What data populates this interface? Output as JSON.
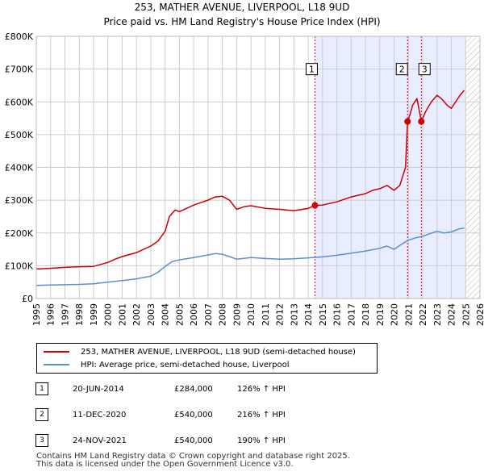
{
  "header": {
    "title_line1": "253, MATHER AVENUE, LIVERPOOL, L18 9UD",
    "title_line2": "Price paid vs. HM Land Registry's House Price Index (HPI)"
  },
  "colors": {
    "property": "#cc0000",
    "hpi": "#5b8fd0",
    "highlight": "#e8eeff",
    "marker_line": "#dd0000",
    "grid": "#cccccc"
  },
  "chart_data": {
    "type": "line",
    "title": "253, MATHER AVENUE, LIVERPOOL, L18 9UD",
    "subtitle": "Price paid vs. HM Land Registry's House Price Index (HPI)",
    "xlim": [
      1995,
      2026
    ],
    "ylim": [
      0,
      800000
    ],
    "y_ticks": [
      0,
      100000,
      200000,
      300000,
      400000,
      500000,
      600000,
      700000,
      800000
    ],
    "y_tick_labels": [
      "£0",
      "£100K",
      "£200K",
      "£300K",
      "£400K",
      "£500K",
      "£600K",
      "£700K",
      "£800K"
    ],
    "x_ticks": [
      1995,
      1996,
      1997,
      1998,
      1999,
      2000,
      2001,
      2002,
      2003,
      2004,
      2005,
      2006,
      2007,
      2008,
      2009,
      2010,
      2011,
      2012,
      2013,
      2014,
      2015,
      2016,
      2017,
      2018,
      2019,
      2020,
      2021,
      2022,
      2023,
      2024,
      2025,
      2026
    ],
    "highlight_band": [
      2014.47,
      2025.0
    ],
    "hatched_after": 2025.0,
    "grid": true,
    "legend_position": "bottom",
    "series": [
      {
        "name": "253, MATHER AVENUE, LIVERPOOL, L18 9UD (semi-detached house)",
        "x": [
          1995.0,
          1996.0,
          1997.0,
          1998.0,
          1999.0,
          2000.0,
          2000.5,
          2001.0,
          2002.0,
          2003.0,
          2003.5,
          2004.0,
          2004.3,
          2004.7,
          2005.0,
          2006.0,
          2007.0,
          2007.5,
          2008.0,
          2008.5,
          2009.0,
          2009.5,
          2010.0,
          2011.0,
          2012.0,
          2013.0,
          2014.0,
          2014.47,
          2015.0,
          2016.0,
          2017.0,
          2018.0,
          2018.5,
          2019.0,
          2019.5,
          2020.0,
          2020.4,
          2020.8,
          2020.94,
          2021.1,
          2021.3,
          2021.6,
          2021.9,
          2022.2,
          2022.6,
          2023.0,
          2023.3,
          2023.7,
          2024.0,
          2024.3,
          2024.6,
          2024.9
        ],
        "y": [
          90000,
          92000,
          95000,
          97000,
          98000,
          110000,
          120000,
          128000,
          140000,
          160000,
          175000,
          205000,
          250000,
          270000,
          265000,
          285000,
          300000,
          310000,
          312000,
          300000,
          272000,
          280000,
          283000,
          275000,
          272000,
          268000,
          275000,
          284000,
          285000,
          295000,
          310000,
          320000,
          330000,
          335000,
          345000,
          330000,
          345000,
          400000,
          540000,
          560000,
          590000,
          610000,
          540000,
          570000,
          600000,
          620000,
          610000,
          590000,
          580000,
          600000,
          620000,
          635000
        ]
      },
      {
        "name": "HPI: Average price, semi-detached house, Liverpool",
        "x": [
          1995.0,
          1996.0,
          1997.0,
          1998.0,
          1999.0,
          2000.0,
          2001.0,
          2002.0,
          2003.0,
          2003.5,
          2004.0,
          2004.5,
          2005.0,
          2006.0,
          2007.0,
          2007.5,
          2008.0,
          2008.5,
          2009.0,
          2010.0,
          2011.0,
          2012.0,
          2013.0,
          2014.0,
          2015.0,
          2016.0,
          2017.0,
          2018.0,
          2019.0,
          2019.5,
          2020.0,
          2020.5,
          2021.0,
          2021.5,
          2022.0,
          2022.5,
          2023.0,
          2023.5,
          2024.0,
          2024.5,
          2024.9
        ],
        "y": [
          40000,
          41000,
          42000,
          43000,
          45000,
          50000,
          55000,
          60000,
          68000,
          80000,
          98000,
          113000,
          118000,
          125000,
          133000,
          137000,
          135000,
          128000,
          120000,
          125000,
          122000,
          120000,
          121000,
          124000,
          127000,
          132000,
          138000,
          145000,
          153000,
          160000,
          150000,
          165000,
          178000,
          185000,
          190000,
          198000,
          205000,
          200000,
          203000,
          212000,
          215000
        ]
      }
    ],
    "sales": [
      {
        "label": "1",
        "x": 2014.47,
        "y": 284000
      },
      {
        "label": "2",
        "x": 2020.94,
        "y": 540000
      },
      {
        "label": "3",
        "x": 2021.9,
        "y": 540000
      }
    ]
  },
  "legend": {
    "property_label": "253, MATHER AVENUE, LIVERPOOL, L18 9UD (semi-detached house)",
    "hpi_label": "HPI: Average price, semi-detached house, Liverpool"
  },
  "transactions": [
    {
      "num": "1",
      "date": "20-JUN-2014",
      "price": "£284,000",
      "hpi": "126% ↑ HPI"
    },
    {
      "num": "2",
      "date": "11-DEC-2020",
      "price": "£540,000",
      "hpi": "216% ↑ HPI"
    },
    {
      "num": "3",
      "date": "24-NOV-2021",
      "price": "£540,000",
      "hpi": "190% ↑ HPI"
    }
  ],
  "footer": {
    "line1": "Contains HM Land Registry data © Crown copyright and database right 2025.",
    "line2": "This data is licensed under the Open Government Licence v3.0."
  }
}
